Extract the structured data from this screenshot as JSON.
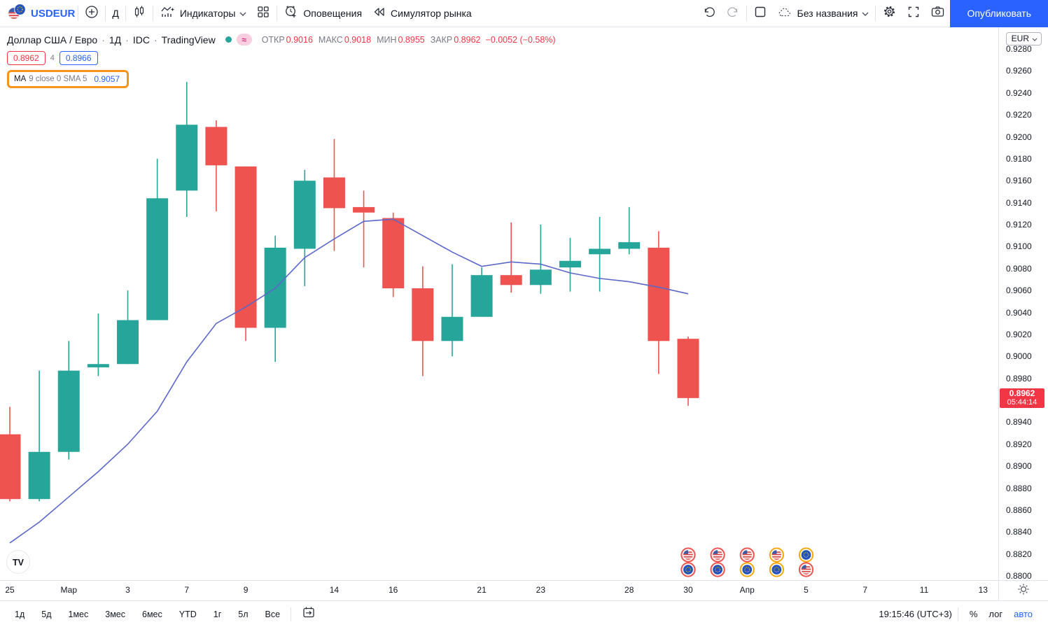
{
  "topbar": {
    "symbol": "USDEUR",
    "interval_button": "Д",
    "indicators_label": "Индикаторы",
    "alerts_label": "Оповещения",
    "replay_label": "Симулятор рынка",
    "layout_name": "Без названия",
    "publish_label": "Опубликовать"
  },
  "legend": {
    "title": "Доллар США / Евро",
    "sep": "·",
    "interval": "1Д",
    "exchange": "IDC",
    "vendor": "TradingView",
    "approx_symbol": "≈",
    "o_label": "ОТКР",
    "o": "0.9016",
    "h_label": "МАКС",
    "h": "0.9018",
    "l_label": "МИН",
    "l": "0.8955",
    "c_label": "ЗАКР",
    "c": "0.8962",
    "change": "−0.0052 (−0.58%)",
    "bid": "0.8962",
    "spread": "4",
    "ask": "0.8966",
    "ma_name": "MA",
    "ma_params": "9 close 0 SMA 5",
    "ma_value": "0.9057"
  },
  "chart_data": {
    "type": "candlestick",
    "symbol": "USDEUR",
    "interval": "1D",
    "up_color": "#26a69a",
    "down_color": "#ef5350",
    "ma_color": "#5b68c8",
    "y_min": 0.88,
    "y_max": 0.928,
    "y_step": 0.002,
    "candles": [
      {
        "date": "2022-02-25",
        "o": 0.8929,
        "h": 0.8954,
        "l": 0.8868,
        "c": 0.887
      },
      {
        "date": "2022-02-28",
        "o": 0.887,
        "h": 0.8987,
        "l": 0.8868,
        "c": 0.8913
      },
      {
        "date": "2022-03-01",
        "o": 0.8913,
        "h": 0.9014,
        "l": 0.8906,
        "c": 0.8987
      },
      {
        "date": "2022-03-02",
        "o": 0.899,
        "h": 0.9039,
        "l": 0.8982,
        "c": 0.8993
      },
      {
        "date": "2022-03-03",
        "o": 0.8993,
        "h": 0.906,
        "l": 0.8993,
        "c": 0.9033
      },
      {
        "date": "2022-03-04",
        "o": 0.9033,
        "h": 0.918,
        "l": 0.9033,
        "c": 0.9144
      },
      {
        "date": "2022-03-07",
        "o": 0.9151,
        "h": 0.925,
        "l": 0.9127,
        "c": 0.9211
      },
      {
        "date": "2022-03-08",
        "o": 0.9209,
        "h": 0.9215,
        "l": 0.9132,
        "c": 0.9174
      },
      {
        "date": "2022-03-09",
        "o": 0.9173,
        "h": 0.9173,
        "l": 0.9014,
        "c": 0.9026
      },
      {
        "date": "2022-03-10",
        "o": 0.9026,
        "h": 0.911,
        "l": 0.8995,
        "c": 0.9099
      },
      {
        "date": "2022-03-11",
        "o": 0.9098,
        "h": 0.917,
        "l": 0.9064,
        "c": 0.916
      },
      {
        "date": "2022-03-14",
        "o": 0.9163,
        "h": 0.9198,
        "l": 0.9096,
        "c": 0.9135
      },
      {
        "date": "2022-03-15",
        "o": 0.9136,
        "h": 0.9151,
        "l": 0.9081,
        "c": 0.9131
      },
      {
        "date": "2022-03-16",
        "o": 0.9126,
        "h": 0.9131,
        "l": 0.9054,
        "c": 0.9062
      },
      {
        "date": "2022-03-17",
        "o": 0.9062,
        "h": 0.9082,
        "l": 0.8982,
        "c": 0.9014
      },
      {
        "date": "2022-03-18",
        "o": 0.9014,
        "h": 0.9084,
        "l": 0.9,
        "c": 0.9036
      },
      {
        "date": "2022-03-21",
        "o": 0.9036,
        "h": 0.9081,
        "l": 0.9036,
        "c": 0.9074
      },
      {
        "date": "2022-03-22",
        "o": 0.9074,
        "h": 0.9122,
        "l": 0.9058,
        "c": 0.9065
      },
      {
        "date": "2022-03-23",
        "o": 0.9065,
        "h": 0.912,
        "l": 0.9057,
        "c": 0.9079
      },
      {
        "date": "2022-03-24",
        "o": 0.9081,
        "h": 0.9108,
        "l": 0.9059,
        "c": 0.9087
      },
      {
        "date": "2022-03-25",
        "o": 0.9093,
        "h": 0.9127,
        "l": 0.9059,
        "c": 0.9098
      },
      {
        "date": "2022-03-28",
        "o": 0.9098,
        "h": 0.9136,
        "l": 0.9093,
        "c": 0.9104
      },
      {
        "date": "2022-03-29",
        "o": 0.9099,
        "h": 0.9114,
        "l": 0.8984,
        "c": 0.9014
      },
      {
        "date": "2022-03-30",
        "o": 0.9016,
        "h": 0.9018,
        "l": 0.8955,
        "c": 0.8962
      }
    ],
    "ma_series": {
      "name": "MA 9 close 0 SMA 5",
      "last_value": 0.9057,
      "values": [
        0.883,
        0.8849,
        0.8872,
        0.8895,
        0.892,
        0.895,
        0.8995,
        0.903,
        0.9045,
        0.9062,
        0.909,
        0.9107,
        0.9123,
        0.9125,
        0.911,
        0.9095,
        0.9082,
        0.9086,
        0.9084,
        0.9076,
        0.9071,
        0.9068,
        0.9063,
        0.9057
      ]
    }
  },
  "price_axis": {
    "currency": "EUR",
    "labels": [
      "0.9280",
      "0.9260",
      "0.9240",
      "0.9220",
      "0.9200",
      "0.9180",
      "0.9160",
      "0.9140",
      "0.9120",
      "0.9100",
      "0.9080",
      "0.9060",
      "0.9040",
      "0.9020",
      "0.9000",
      "0.8980",
      "0.8940",
      "0.8920",
      "0.8900",
      "0.8880",
      "0.8860",
      "0.8840",
      "0.8820",
      "0.8800"
    ],
    "last_price": "0.8962",
    "countdown": "05:44:14"
  },
  "time_axis": {
    "labels": [
      {
        "t": "25",
        "slot": 0
      },
      {
        "t": "Мар",
        "slot": 2
      },
      {
        "t": "3",
        "slot": 4
      },
      {
        "t": "7",
        "slot": 6
      },
      {
        "t": "9",
        "slot": 8
      },
      {
        "t": "14",
        "slot": 11
      },
      {
        "t": "16",
        "slot": 13
      },
      {
        "t": "21",
        "slot": 16
      },
      {
        "t": "23",
        "slot": 18
      },
      {
        "t": "28",
        "slot": 21
      },
      {
        "t": "30",
        "slot": 23
      },
      {
        "t": "Апр",
        "slot": 25
      },
      {
        "t": "5",
        "slot": 27
      },
      {
        "t": "7",
        "slot": 29
      },
      {
        "t": "11",
        "slot": 31
      },
      {
        "t": "13",
        "slot": 33
      }
    ]
  },
  "events": [
    {
      "slot": 23,
      "flags": [
        {
          "country": "us",
          "ring": "#ef5350"
        },
        {
          "country": "eu",
          "ring": "#ef5350"
        }
      ]
    },
    {
      "slot": 24,
      "flags": [
        {
          "country": "us",
          "ring": "#ef5350"
        },
        {
          "country": "eu",
          "ring": "#ef5350"
        }
      ]
    },
    {
      "slot": 25,
      "flags": [
        {
          "country": "us",
          "ring": "#ef5350"
        },
        {
          "country": "eu",
          "ring": "#f6a609"
        }
      ]
    },
    {
      "slot": 26,
      "flags": [
        {
          "country": "us",
          "ring": "#f6a609"
        },
        {
          "country": "eu",
          "ring": "#f6a609"
        }
      ]
    },
    {
      "slot": 27,
      "flags": [
        {
          "country": "eu",
          "ring": "#f6a609"
        },
        {
          "country": "us",
          "ring": "#ef5350"
        }
      ]
    }
  ],
  "watermark": "TV",
  "toolbar_bottom": {
    "ranges": [
      "1д",
      "5д",
      "1мес",
      "3мес",
      "6мес",
      "YTD",
      "1г",
      "5л",
      "Все"
    ],
    "clock": "19:15:46 (UTC+3)",
    "percent": "%",
    "log": "лог",
    "auto": "авто"
  }
}
